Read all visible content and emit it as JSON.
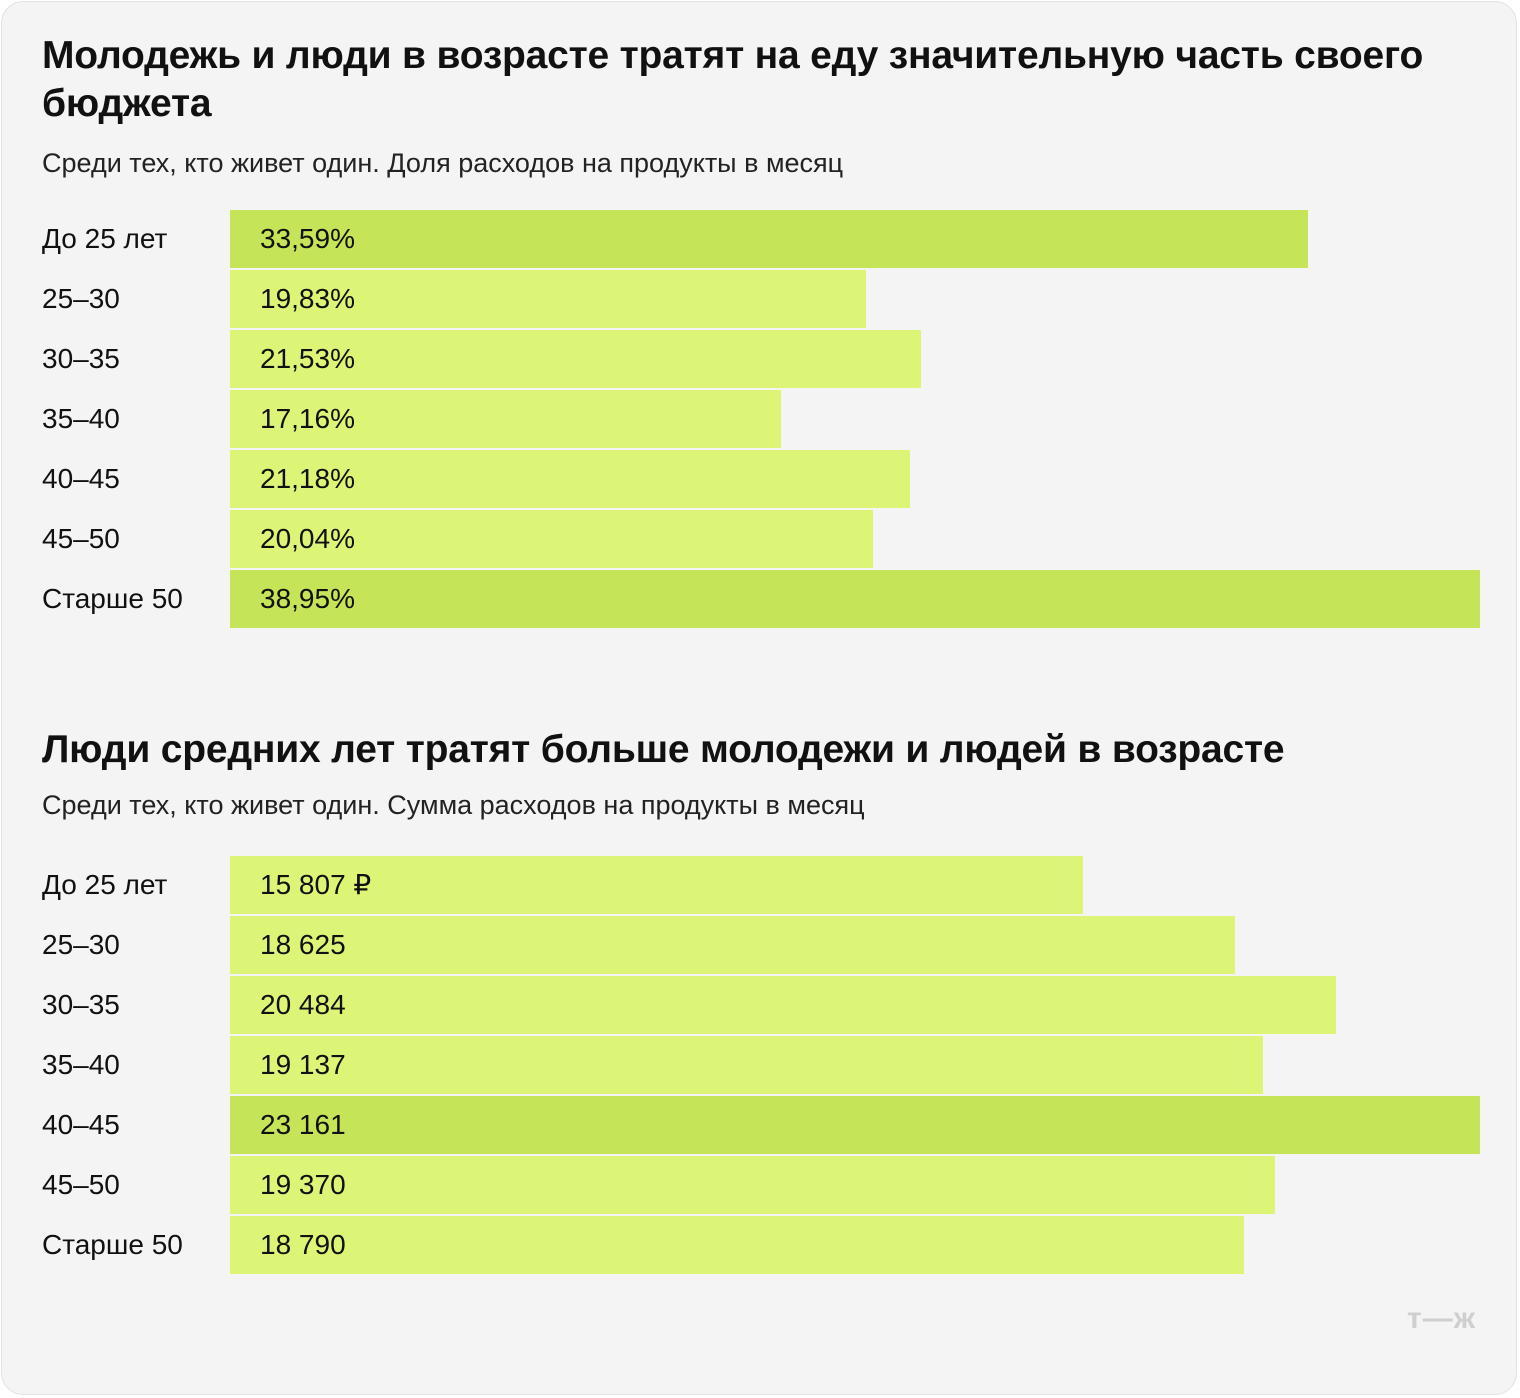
{
  "chart_data": [
    {
      "type": "bar",
      "orientation": "horizontal",
      "title": "Молодежь и люди в возрасте тратят на еду значительную часть своего бюджета",
      "subtitle": "Среди тех, кто живет один. Доля расходов на продукты в месяц",
      "categories": [
        "До 25 лет",
        "25–30",
        "30–35",
        "35–40",
        "40–45",
        "45–50",
        "Старше 50"
      ],
      "values": [
        33.59,
        19.83,
        21.53,
        17.16,
        21.18,
        20.04,
        38.95
      ],
      "value_labels": [
        "33,59%",
        "19,83%",
        "21,53%",
        "17,16%",
        "21,18%",
        "20,04%",
        "38,95%"
      ],
      "highlighted": [
        true,
        false,
        false,
        false,
        false,
        false,
        true
      ],
      "xlim": [
        0,
        38.95
      ]
    },
    {
      "type": "bar",
      "orientation": "horizontal",
      "title": "Люди средних лет тратят больше молодежи и людей в возрасте",
      "subtitle": "Среди тех, кто живет один. Сумма расходов на продукты в месяц",
      "categories": [
        "До 25 лет",
        "25–30",
        "30–35",
        "35–40",
        "40–45",
        "45–50",
        "Старше 50"
      ],
      "values": [
        15807,
        18625,
        20484,
        19137,
        23161,
        19370,
        18790
      ],
      "value_labels": [
        "15 807 ₽",
        "18 625",
        "20 484",
        "19 137",
        "23 161",
        "19 370",
        "18 790"
      ],
      "highlighted": [
        false,
        false,
        false,
        false,
        true,
        false,
        false
      ],
      "xlim": [
        0,
        23161
      ]
    }
  ],
  "colors": {
    "bar": "#dcf577",
    "bar_highlight": "#c5e457",
    "background": "#f4f4f4"
  },
  "logo": "т—ж"
}
